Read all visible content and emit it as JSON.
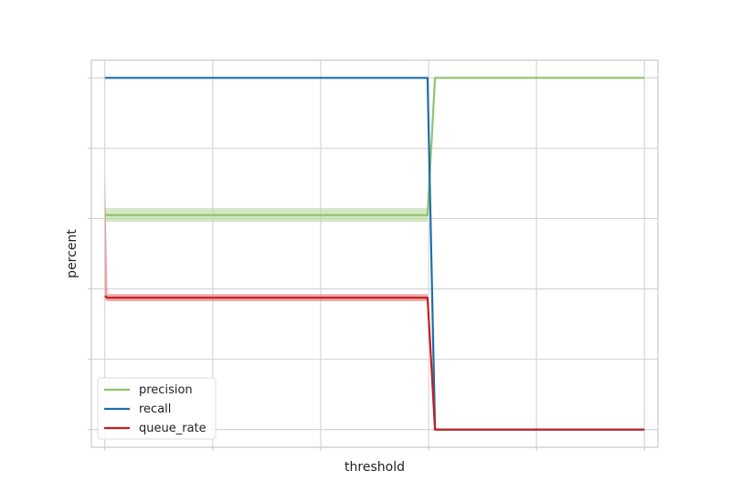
{
  "chart_data": {
    "type": "line",
    "title": "",
    "xlabel": "threshold",
    "ylabel": "percent",
    "xlim": [
      -0.025,
      1.025
    ],
    "ylim": [
      -0.05,
      1.05
    ],
    "grid": true,
    "legend_placement": "lower-left",
    "x_ticks": [
      0.0,
      0.2,
      0.4,
      0.6,
      0.8,
      1.0
    ],
    "y_ticks": [
      0.0,
      0.2,
      0.4,
      0.6,
      0.8,
      1.0
    ],
    "series": [
      {
        "name": "precision",
        "color": "#8fc36d",
        "band_color": "#b9d89f",
        "x": [
          0.0,
          0.598,
          0.612,
          1.0
        ],
        "y": [
          0.61,
          0.61,
          1.0,
          1.0
        ],
        "lower": [
          0.59,
          0.59,
          1.0,
          1.0
        ],
        "upper": [
          0.63,
          0.63,
          1.0,
          1.0
        ]
      },
      {
        "name": "recall",
        "color": "#1f6fa8",
        "band_color": "#86bde0",
        "x": [
          0.0,
          0.598,
          0.612,
          1.0
        ],
        "y": [
          1.0,
          1.0,
          0.0,
          0.0
        ],
        "lower": [
          1.0,
          1.0,
          0.0,
          0.0
        ],
        "upper": [
          1.0,
          1.0,
          0.0,
          0.0
        ]
      },
      {
        "name": "queue_rate",
        "color": "#c41e1e",
        "band_color": "#e07272",
        "x": [
          0.0,
          0.005,
          0.598,
          0.612,
          1.0
        ],
        "y": [
          0.38,
          0.375,
          0.375,
          0.0,
          0.0
        ],
        "lower": [
          0.37,
          0.365,
          0.365,
          0.0,
          0.0
        ],
        "upper": [
          0.73,
          0.385,
          0.385,
          0.0,
          0.0
        ]
      }
    ]
  }
}
